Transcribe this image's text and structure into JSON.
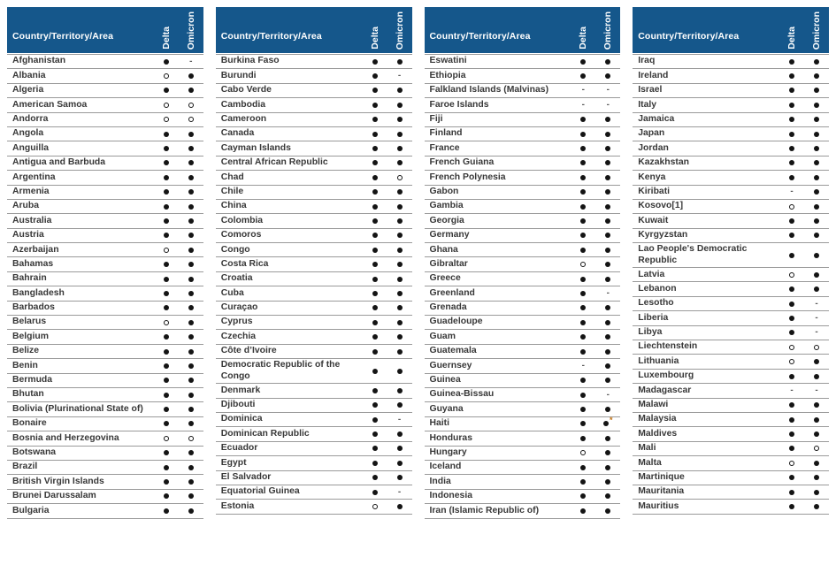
{
  "header": {
    "country_label": "Country/Territory/Area",
    "delta_label": "Delta",
    "omicron_label": "Omicron"
  },
  "colors": {
    "header_bg": "#15578B",
    "header_text": "#FFFFFF",
    "row_text": "#383838",
    "divider": "#9A9A9A",
    "dot": "#141414",
    "asterisk": "#C07010"
  },
  "symbols": {
    "filled": "●",
    "open": "○",
    "dash": "-",
    "filled-asterisk": "●*"
  },
  "tables": [
    {
      "rows": [
        [
          "Afghanistan",
          "filled",
          "dash"
        ],
        [
          "Albania",
          "open",
          "filled"
        ],
        [
          "Algeria",
          "filled",
          "filled"
        ],
        [
          "American Samoa",
          "open",
          "open"
        ],
        [
          "Andorra",
          "open",
          "open"
        ],
        [
          "Angola",
          "filled",
          "filled"
        ],
        [
          "Anguilla",
          "filled",
          "filled"
        ],
        [
          "Antigua and Barbuda",
          "filled",
          "filled"
        ],
        [
          "Argentina",
          "filled",
          "filled"
        ],
        [
          "Armenia",
          "filled",
          "filled"
        ],
        [
          "Aruba",
          "filled",
          "filled"
        ],
        [
          "Australia",
          "filled",
          "filled"
        ],
        [
          "Austria",
          "filled",
          "filled"
        ],
        [
          "Azerbaijan",
          "open",
          "filled"
        ],
        [
          "Bahamas",
          "filled",
          "filled"
        ],
        [
          "Bahrain",
          "filled",
          "filled"
        ],
        [
          "Bangladesh",
          "filled",
          "filled"
        ],
        [
          "Barbados",
          "filled",
          "filled"
        ],
        [
          "Belarus",
          "open",
          "filled"
        ],
        [
          "Belgium",
          "filled",
          "filled"
        ],
        [
          "Belize",
          "filled",
          "filled"
        ],
        [
          "Benin",
          "filled",
          "filled"
        ],
        [
          "Bermuda",
          "filled",
          "filled"
        ],
        [
          "Bhutan",
          "filled",
          "filled"
        ],
        [
          "Bolivia (Plurinational State of)",
          "filled",
          "filled"
        ],
        [
          "Bonaire",
          "filled",
          "filled"
        ],
        [
          "Bosnia and Herzegovina",
          "open",
          "open"
        ],
        [
          "Botswana",
          "filled",
          "filled"
        ],
        [
          "Brazil",
          "filled",
          "filled"
        ],
        [
          "British Virgin Islands",
          "filled",
          "filled"
        ],
        [
          "Brunei Darussalam",
          "filled",
          "filled"
        ],
        [
          "Bulgaria",
          "filled",
          "filled"
        ]
      ]
    },
    {
      "rows": [
        [
          "Burkina Faso",
          "filled",
          "filled"
        ],
        [
          "Burundi",
          "filled",
          "dash"
        ],
        [
          "Cabo Verde",
          "filled",
          "filled"
        ],
        [
          "Cambodia",
          "filled",
          "filled"
        ],
        [
          "Cameroon",
          "filled",
          "filled"
        ],
        [
          "Canada",
          "filled",
          "filled"
        ],
        [
          "Cayman Islands",
          "filled",
          "filled"
        ],
        [
          "Central African Republic",
          "filled",
          "filled"
        ],
        [
          "Chad",
          "filled",
          "open"
        ],
        [
          "Chile",
          "filled",
          "filled"
        ],
        [
          "China",
          "filled",
          "filled"
        ],
        [
          "Colombia",
          "filled",
          "filled"
        ],
        [
          "Comoros",
          "filled",
          "filled"
        ],
        [
          "Congo",
          "filled",
          "filled"
        ],
        [
          "Costa Rica",
          "filled",
          "filled"
        ],
        [
          "Croatia",
          "filled",
          "filled"
        ],
        [
          "Cuba",
          "filled",
          "filled"
        ],
        [
          "Curaçao",
          "filled",
          "filled"
        ],
        [
          "Cyprus",
          "filled",
          "filled"
        ],
        [
          "Czechia",
          "filled",
          "filled"
        ],
        [
          "Côte d’Ivoire",
          "filled",
          "filled"
        ],
        [
          "Democratic Republic of the Congo",
          "filled",
          "filled"
        ],
        [
          "Denmark",
          "filled",
          "filled"
        ],
        [
          "Djibouti",
          "filled",
          "filled"
        ],
        [
          "Dominica",
          "filled",
          "dash"
        ],
        [
          "Dominican Republic",
          "filled",
          "filled"
        ],
        [
          "Ecuador",
          "filled",
          "filled"
        ],
        [
          "Egypt",
          "filled",
          "filled"
        ],
        [
          "El Salvador",
          "filled",
          "filled"
        ],
        [
          "Equatorial Guinea",
          "filled",
          "dash"
        ],
        [
          "Estonia",
          "open",
          "filled"
        ]
      ]
    },
    {
      "rows": [
        [
          "Eswatini",
          "filled",
          "filled"
        ],
        [
          "Ethiopia",
          "filled",
          "filled"
        ],
        [
          "Falkland Islands (Malvinas)",
          "dash",
          "dash"
        ],
        [
          "Faroe Islands",
          "dash",
          "dash"
        ],
        [
          "Fiji",
          "filled",
          "filled"
        ],
        [
          "Finland",
          "filled",
          "filled"
        ],
        [
          "France",
          "filled",
          "filled"
        ],
        [
          "French Guiana",
          "filled",
          "filled"
        ],
        [
          "French Polynesia",
          "filled",
          "filled"
        ],
        [
          "Gabon",
          "filled",
          "filled"
        ],
        [
          "Gambia",
          "filled",
          "filled"
        ],
        [
          "Georgia",
          "filled",
          "filled"
        ],
        [
          "Germany",
          "filled",
          "filled"
        ],
        [
          "Ghana",
          "filled",
          "filled"
        ],
        [
          "Gibraltar",
          "open",
          "filled"
        ],
        [
          "Greece",
          "filled",
          "filled"
        ],
        [
          "Greenland",
          "filled",
          "dash"
        ],
        [
          "Grenada",
          "filled",
          "filled"
        ],
        [
          "Guadeloupe",
          "filled",
          "filled"
        ],
        [
          "Guam",
          "filled",
          "filled"
        ],
        [
          "Guatemala",
          "filled",
          "filled"
        ],
        [
          "Guernsey",
          "dash",
          "filled"
        ],
        [
          "Guinea",
          "filled",
          "filled"
        ],
        [
          "Guinea-Bissau",
          "filled",
          "dash"
        ],
        [
          "Guyana",
          "filled",
          "filled"
        ],
        [
          "Haiti",
          "filled",
          "filled-asterisk"
        ],
        [
          "Honduras",
          "filled",
          "filled"
        ],
        [
          "Hungary",
          "open",
          "filled"
        ],
        [
          "Iceland",
          "filled",
          "filled"
        ],
        [
          "India",
          "filled",
          "filled"
        ],
        [
          "Indonesia",
          "filled",
          "filled"
        ],
        [
          "Iran (Islamic Republic of)",
          "filled",
          "filled"
        ]
      ]
    },
    {
      "rows": [
        [
          "Iraq",
          "filled",
          "filled"
        ],
        [
          "Ireland",
          "filled",
          "filled"
        ],
        [
          "Israel",
          "filled",
          "filled"
        ],
        [
          "Italy",
          "filled",
          "filled"
        ],
        [
          "Jamaica",
          "filled",
          "filled"
        ],
        [
          "Japan",
          "filled",
          "filled"
        ],
        [
          "Jordan",
          "filled",
          "filled"
        ],
        [
          "Kazakhstan",
          "filled",
          "filled"
        ],
        [
          "Kenya",
          "filled",
          "filled"
        ],
        [
          "Kiribati",
          "dash",
          "filled"
        ],
        [
          "Kosovo[1]",
          "open",
          "filled"
        ],
        [
          "Kuwait",
          "filled",
          "filled"
        ],
        [
          "Kyrgyzstan",
          "filled",
          "filled"
        ],
        [
          "Lao People's Democratic Republic",
          "filled",
          "filled"
        ],
        [
          "Latvia",
          "open",
          "filled"
        ],
        [
          "Lebanon",
          "filled",
          "filled"
        ],
        [
          "Lesotho",
          "filled",
          "dash"
        ],
        [
          "Liberia",
          "filled",
          "dash"
        ],
        [
          "Libya",
          "filled",
          "dash"
        ],
        [
          "Liechtenstein",
          "open",
          "open"
        ],
        [
          "Lithuania",
          "open",
          "filled"
        ],
        [
          "Luxembourg",
          "filled",
          "filled"
        ],
        [
          "Madagascar",
          "dash",
          "dash"
        ],
        [
          "Malawi",
          "filled",
          "filled"
        ],
        [
          "Malaysia",
          "filled",
          "filled"
        ],
        [
          "Maldives",
          "filled",
          "filled"
        ],
        [
          "Mali",
          "filled",
          "open"
        ],
        [
          "Malta",
          "open",
          "filled"
        ],
        [
          "Martinique",
          "filled",
          "filled"
        ],
        [
          "Mauritania",
          "filled",
          "filled"
        ],
        [
          "Mauritius",
          "filled",
          "filled"
        ]
      ]
    }
  ]
}
